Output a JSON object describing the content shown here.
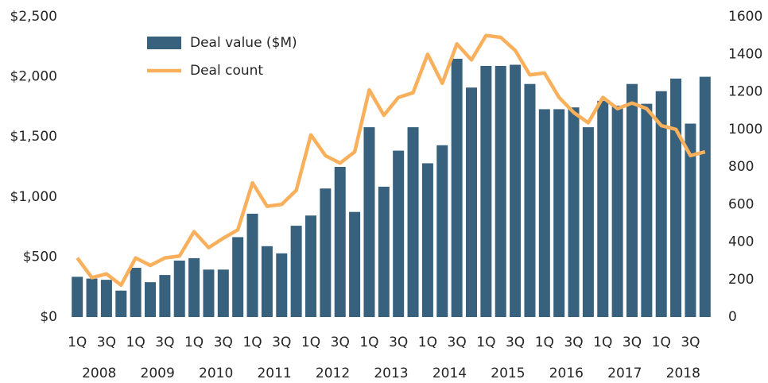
{
  "chart_data": {
    "type": "bar_line",
    "categories": [
      "1Q",
      null,
      "3Q",
      null,
      "1Q",
      null,
      "3Q",
      null,
      "1Q",
      null,
      "3Q",
      null,
      "1Q",
      null,
      "3Q",
      null,
      "1Q",
      null,
      "3Q",
      null,
      "1Q",
      null,
      "3Q",
      null,
      "1Q",
      null,
      "3Q",
      null,
      "1Q",
      null,
      "3Q",
      null,
      "1Q",
      null,
      "3Q",
      null,
      "1Q",
      null,
      "3Q",
      null,
      "1Q",
      null,
      "3Q",
      null
    ],
    "years": [
      "2008",
      "2009",
      "2010",
      "2011",
      "2012",
      "2013",
      "2014",
      "2015",
      "2016",
      "2017",
      "2018"
    ],
    "series": [
      {
        "name": "Deal value ($M)",
        "color": "#37617c",
        "kind": "bar",
        "axis": "y",
        "values": [
          335,
          320,
          310,
          220,
          410,
          290,
          350,
          470,
          490,
          395,
          395,
          665,
          860,
          590,
          530,
          760,
          845,
          1070,
          1250,
          875,
          1580,
          1085,
          1385,
          1580,
          1280,
          1430,
          2150,
          1910,
          2090,
          2090,
          2100,
          1940,
          1730,
          1730,
          1745,
          1580,
          1800,
          1760,
          1940,
          1775,
          1880,
          1985,
          1610,
          2000
        ]
      },
      {
        "name": "Deal count",
        "color": "#f8b05c",
        "kind": "line",
        "axis": "y2",
        "values": [
          315,
          210,
          230,
          170,
          315,
          275,
          315,
          325,
          455,
          370,
          420,
          465,
          715,
          590,
          600,
          675,
          970,
          860,
          820,
          880,
          1210,
          1075,
          1170,
          1195,
          1400,
          1245,
          1455,
          1370,
          1500,
          1490,
          1420,
          1290,
          1300,
          1170,
          1090,
          1035,
          1170,
          1110,
          1140,
          1110,
          1020,
          1000,
          860,
          880
        ]
      }
    ],
    "ylim": [
      0,
      2500
    ],
    "yticks": [
      {
        "value": 0,
        "label": "$0"
      },
      {
        "value": 500,
        "label": "$500"
      },
      {
        "value": 1000,
        "label": "$1,000"
      },
      {
        "value": 1500,
        "label": "$1,500"
      },
      {
        "value": 2000,
        "label": "$2,000"
      },
      {
        "value": 2500,
        "label": "$2,500"
      }
    ],
    "y2lim": [
      0,
      1600
    ],
    "y2ticks": [
      0,
      200,
      400,
      600,
      800,
      1000,
      1200,
      1400,
      1600
    ],
    "legend": "upper left"
  }
}
